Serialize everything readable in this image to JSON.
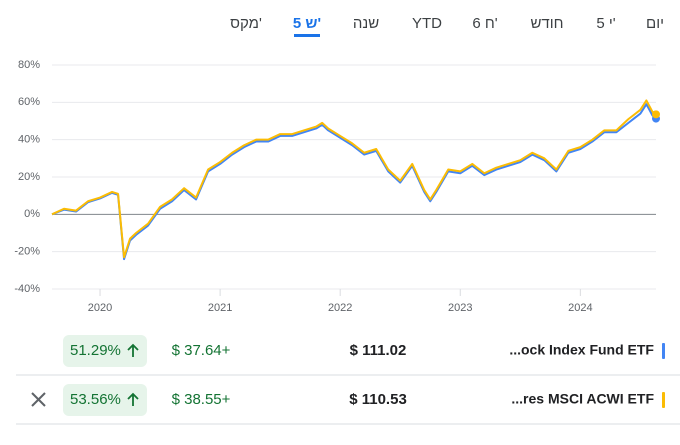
{
  "tabs": [
    "יום",
    "5 י'",
    "חודש",
    "6 ח'",
    "YTD",
    "שנה",
    "5 ש'",
    "מקס'"
  ],
  "active_tab": 6,
  "chart_data": {
    "type": "line",
    "x": [
      2019.6,
      2019.7,
      2019.8,
      2019.9,
      2020.0,
      2020.1,
      2020.15,
      2020.2,
      2020.25,
      2020.3,
      2020.4,
      2020.5,
      2020.6,
      2020.7,
      2020.8,
      2020.9,
      2021.0,
      2021.1,
      2021.2,
      2021.3,
      2021.4,
      2021.5,
      2021.6,
      2021.7,
      2021.8,
      2021.85,
      2021.9,
      2022.0,
      2022.1,
      2022.2,
      2022.3,
      2022.4,
      2022.5,
      2022.6,
      2022.7,
      2022.75,
      2022.8,
      2022.9,
      2023.0,
      2023.1,
      2023.2,
      2023.3,
      2023.4,
      2023.5,
      2023.6,
      2023.7,
      2023.8,
      2023.9,
      2024.0,
      2024.1,
      2024.2,
      2024.3,
      2024.4,
      2024.5,
      2024.55,
      2024.6,
      2024.63
    ],
    "series": [
      {
        "name": "...ock Index Fund ETF",
        "color": "#4285f4",
        "values": [
          0,
          2.5,
          1.5,
          6.5,
          8.5,
          11.5,
          10.5,
          -24,
          -14,
          -11,
          -6,
          3,
          7,
          13,
          8,
          23,
          27,
          32,
          36,
          39,
          39,
          42,
          42,
          44,
          46,
          48,
          45,
          41,
          37,
          32,
          34,
          23,
          17,
          26,
          12,
          7,
          12,
          23,
          22,
          26,
          21,
          24,
          26,
          28,
          32,
          29,
          23,
          33,
          35,
          39,
          44,
          44,
          49,
          54,
          59,
          53,
          51.29
        ]
      },
      {
        "name": "...res MSCI ACWI ETF",
        "color": "#fbbc04",
        "values": [
          0,
          3,
          2,
          7,
          9,
          12,
          11,
          -23,
          -13,
          -10,
          -5,
          4,
          8,
          14,
          9,
          24,
          28,
          33,
          37,
          40,
          40,
          43,
          43,
          45,
          47,
          49,
          46,
          42,
          38,
          33,
          35,
          24,
          18,
          27,
          13,
          8,
          13,
          24,
          23,
          27,
          22,
          25,
          27,
          29,
          33,
          30,
          24,
          34,
          36,
          40,
          45,
          45,
          51,
          56,
          61,
          55,
          53.56
        ]
      }
    ],
    "xlim": [
      2019.6,
      2024.63
    ],
    "xticks": [
      2020,
      2021,
      2022,
      2023,
      2024
    ],
    "ylim": [
      -40,
      80
    ],
    "yticks": [
      {
        "value": -40,
        "label": "-40%"
      },
      {
        "value": -20,
        "label": "-20%"
      },
      {
        "value": 0,
        "label": "0%"
      },
      {
        "value": 20,
        "label": "20%"
      },
      {
        "value": 40,
        "label": "40%"
      },
      {
        "value": 60,
        "label": "60%"
      },
      {
        "value": 80,
        "label": "80%"
      }
    ],
    "grid": true
  },
  "rows": [
    {
      "percent": "51.29%",
      "change": "$ 37.64+",
      "price": "$ 111.02"
    },
    {
      "percent": "53.56%",
      "change": "$ 38.55+",
      "price": "$ 110.53"
    }
  ]
}
